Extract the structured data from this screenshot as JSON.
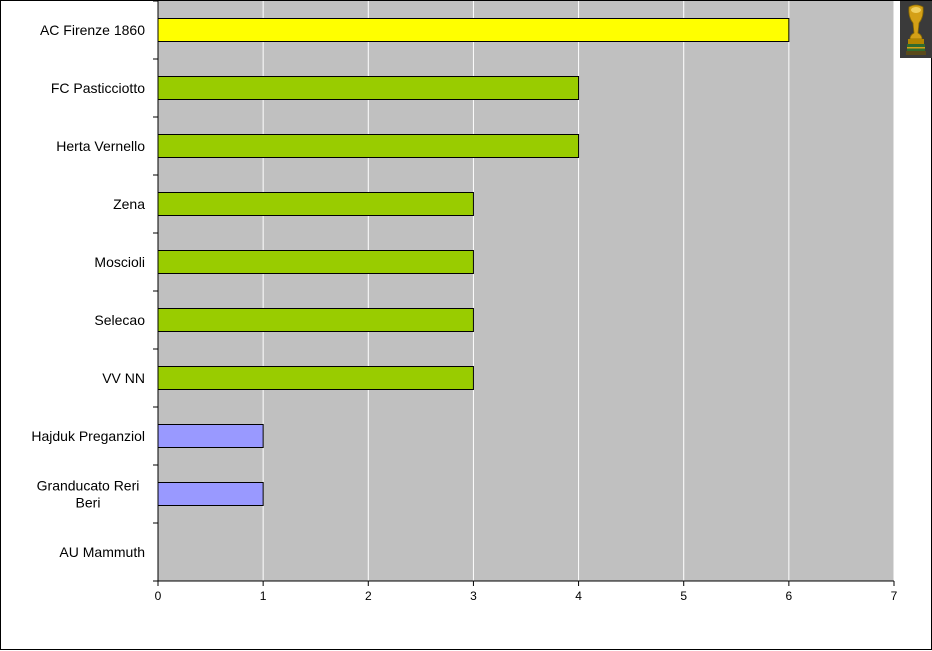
{
  "chart_data": {
    "type": "bar",
    "orientation": "horizontal",
    "categories": [
      "AC Firenze 1860",
      "FC Pasticciotto",
      "Herta Vernello",
      "Zena",
      "Moscioli",
      "Selecao",
      "VV NN",
      "Hajduk Preganziol",
      "Granducato Reri Beri",
      "AU Mammuth"
    ],
    "values": [
      6,
      4,
      4,
      3,
      3,
      3,
      3,
      1,
      1,
      0
    ],
    "bar_colors": [
      "#ffff00",
      "#99cc00",
      "#99cc00",
      "#99cc00",
      "#99cc00",
      "#99cc00",
      "#99cc00",
      "#9999ff",
      "#9999ff",
      "#9999ff"
    ],
    "xlim": [
      0,
      7
    ],
    "xticks": [
      0,
      1,
      2,
      3,
      4,
      5,
      6,
      7
    ],
    "grid": true,
    "plot_background": "#c0c0c0",
    "gridline_color": "#ffffff",
    "title": "",
    "xlabel": "",
    "ylabel": ""
  },
  "icons": {
    "trophy": "trophy-icon"
  }
}
